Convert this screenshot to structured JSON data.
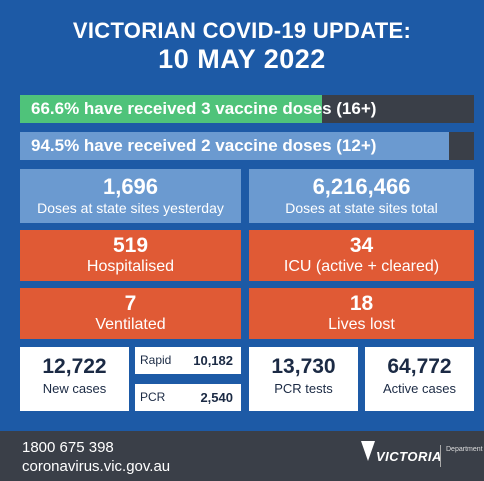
{
  "header": {
    "title": "VICTORIAN COVID-19 UPDATE:",
    "date": "10 MAY 2022"
  },
  "vaccination": [
    {
      "label": "66.6% have received 3 vaccine doses (16+)",
      "percent": 66.6,
      "color": "#4fc37a"
    },
    {
      "label": "94.5% have received 2 vaccine doses (12+)",
      "percent": 94.5,
      "color": "#6b9ad0"
    }
  ],
  "doses": {
    "yesterday": {
      "value": "1,696",
      "label": "Doses at state sites yesterday"
    },
    "total": {
      "value": "6,216,466",
      "label": "Doses at state sites total"
    }
  },
  "hospital": {
    "hospitalised": {
      "value": "519",
      "label": "Hospitalised"
    },
    "icu": {
      "value": "34",
      "label": "ICU (active + cleared)"
    },
    "ventilated": {
      "value": "7",
      "label": "Ventilated"
    },
    "lives_lost": {
      "value": "18",
      "label": "Lives lost"
    }
  },
  "cases": {
    "new_cases": {
      "value": "12,722",
      "label": "New cases"
    },
    "rapid": {
      "label": "Rapid",
      "value": "10,182"
    },
    "pcr": {
      "label": "PCR",
      "value": "2,540"
    },
    "pcr_tests": {
      "value": "13,730",
      "label": "PCR tests"
    },
    "active_cases": {
      "value": "64,772",
      "label": "Active cases"
    }
  },
  "footer": {
    "phone": "1800 675 398",
    "website": "coronavirus.vic.gov.au",
    "logo_text": "VICTORIA",
    "dept_text": "Department"
  }
}
